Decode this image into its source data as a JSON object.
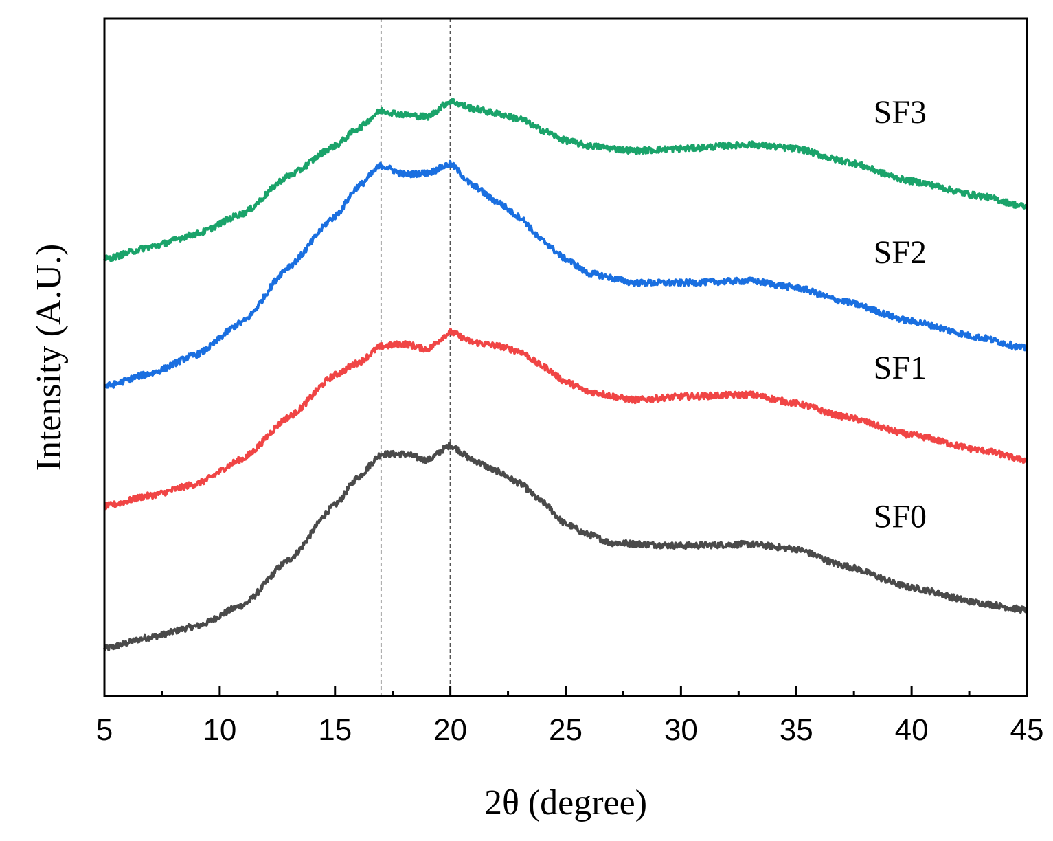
{
  "chart_data": {
    "type": "line",
    "title": "",
    "xlabel": "2θ (degree)",
    "ylabel": "Intensity (A.U.)",
    "xlim": [
      5,
      45
    ],
    "ylim": [
      0,
      10
    ],
    "x_ticks": [
      5,
      10,
      15,
      20,
      25,
      30,
      35,
      40,
      45
    ],
    "x_tick_labels": [
      "5",
      "10",
      "15",
      "20",
      "25",
      "30",
      "35",
      "40",
      "45"
    ],
    "y_ticks_shown": false,
    "grid": false,
    "reference_lines_x": [
      17,
      20
    ],
    "series": [
      {
        "name": "SF0",
        "color": "#4a4a4a",
        "points": [
          [
            5,
            0.7
          ],
          [
            7,
            0.87
          ],
          [
            9,
            1.03
          ],
          [
            11,
            1.34
          ],
          [
            13,
            2.01
          ],
          [
            15,
            2.82
          ],
          [
            16,
            3.23
          ],
          [
            17,
            3.57
          ],
          [
            18,
            3.57
          ],
          [
            19,
            3.48
          ],
          [
            20,
            3.7
          ],
          [
            21,
            3.48
          ],
          [
            22,
            3.32
          ],
          [
            23,
            3.14
          ],
          [
            24,
            2.86
          ],
          [
            25,
            2.54
          ],
          [
            26,
            2.38
          ],
          [
            27,
            2.26
          ],
          [
            30,
            2.22
          ],
          [
            33,
            2.24
          ],
          [
            35,
            2.17
          ],
          [
            37,
            1.93
          ],
          [
            40,
            1.6
          ],
          [
            43,
            1.37
          ],
          [
            45,
            1.27
          ]
        ]
      },
      {
        "name": "SF1",
        "color": "#f04545",
        "points": [
          [
            5,
            2.8
          ],
          [
            7,
            2.96
          ],
          [
            9,
            3.13
          ],
          [
            11,
            3.5
          ],
          [
            13,
            4.12
          ],
          [
            15,
            4.74
          ],
          [
            16,
            4.92
          ],
          [
            17,
            5.16
          ],
          [
            18,
            5.2
          ],
          [
            19,
            5.12
          ],
          [
            20,
            5.37
          ],
          [
            21,
            5.22
          ],
          [
            22,
            5.17
          ],
          [
            23,
            5.09
          ],
          [
            24,
            4.87
          ],
          [
            25,
            4.64
          ],
          [
            26,
            4.49
          ],
          [
            28,
            4.37
          ],
          [
            30,
            4.42
          ],
          [
            33,
            4.45
          ],
          [
            35,
            4.32
          ],
          [
            37,
            4.13
          ],
          [
            40,
            3.85
          ],
          [
            43,
            3.63
          ],
          [
            45,
            3.48
          ]
        ]
      },
      {
        "name": "SF2",
        "color": "#1a6fe0",
        "points": [
          [
            5,
            4.57
          ],
          [
            7,
            4.76
          ],
          [
            9,
            5.04
          ],
          [
            11,
            5.52
          ],
          [
            13,
            6.34
          ],
          [
            15,
            7.08
          ],
          [
            16,
            7.52
          ],
          [
            17,
            7.83
          ],
          [
            18,
            7.7
          ],
          [
            19,
            7.72
          ],
          [
            20,
            7.85
          ],
          [
            21,
            7.53
          ],
          [
            22,
            7.3
          ],
          [
            23,
            7.07
          ],
          [
            24,
            6.72
          ],
          [
            25,
            6.45
          ],
          [
            26,
            6.24
          ],
          [
            28,
            6.1
          ],
          [
            30,
            6.1
          ],
          [
            33,
            6.13
          ],
          [
            35,
            6.03
          ],
          [
            37,
            5.83
          ],
          [
            40,
            5.53
          ],
          [
            43,
            5.29
          ],
          [
            45,
            5.13
          ]
        ]
      },
      {
        "name": "SF3",
        "color": "#1aa36a",
        "points": [
          [
            5,
            6.45
          ],
          [
            7,
            6.63
          ],
          [
            9,
            6.82
          ],
          [
            11,
            7.12
          ],
          [
            13,
            7.68
          ],
          [
            15,
            8.12
          ],
          [
            16,
            8.38
          ],
          [
            17,
            8.64
          ],
          [
            18,
            8.58
          ],
          [
            19,
            8.55
          ],
          [
            20,
            8.78
          ],
          [
            21,
            8.67
          ],
          [
            22,
            8.6
          ],
          [
            23,
            8.52
          ],
          [
            24,
            8.35
          ],
          [
            25,
            8.2
          ],
          [
            26,
            8.12
          ],
          [
            28,
            8.05
          ],
          [
            30,
            8.08
          ],
          [
            33,
            8.14
          ],
          [
            35,
            8.08
          ],
          [
            37,
            7.9
          ],
          [
            40,
            7.6
          ],
          [
            43,
            7.38
          ],
          [
            45,
            7.22
          ]
        ]
      }
    ]
  }
}
